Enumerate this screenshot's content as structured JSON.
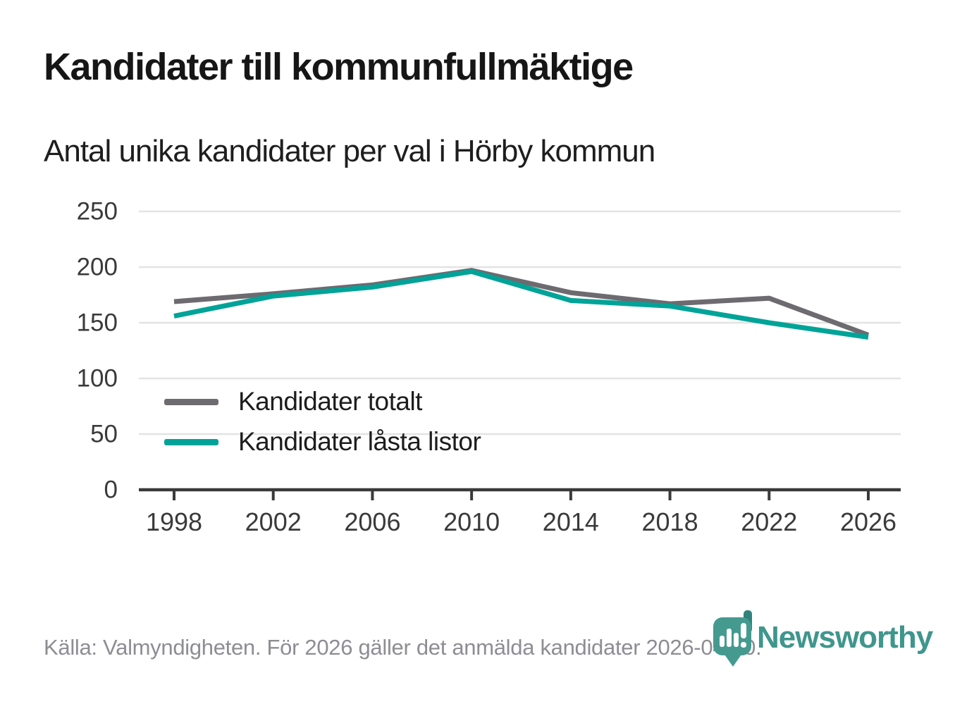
{
  "chart_data": {
    "type": "line",
    "title": "Kandidater till kommunfullmäktige",
    "subtitle": "Antal unika kandidater per val i Hörby kommun",
    "x": [
      1998,
      2002,
      2006,
      2010,
      2014,
      2018,
      2022,
      2026
    ],
    "series": [
      {
        "name": "Kandidater totalt",
        "color": "#6d6a70",
        "values": [
          169,
          176,
          184,
          197,
          177,
          167,
          172,
          139
        ]
      },
      {
        "name": "Kandidater låsta listor",
        "color": "#00a398",
        "values": [
          156,
          174,
          182,
          196,
          170,
          165,
          150,
          137
        ]
      }
    ],
    "ylim": [
      0,
      250
    ],
    "yticks": [
      0,
      50,
      100,
      150,
      200,
      250
    ],
    "grid": "horizontal",
    "legend_position": "inside-bottom-left",
    "axis_color": "#3a3a3a",
    "gridline_color": "#e3e3e3"
  },
  "footer": {
    "source_text": "Källa: Valmyndigheten. För 2026 gäller det anmälda kandidater 2026-04-10."
  },
  "logo": {
    "brand": "Newsworthy",
    "teal": "#459a90",
    "teal_dark": "#2f837b"
  }
}
